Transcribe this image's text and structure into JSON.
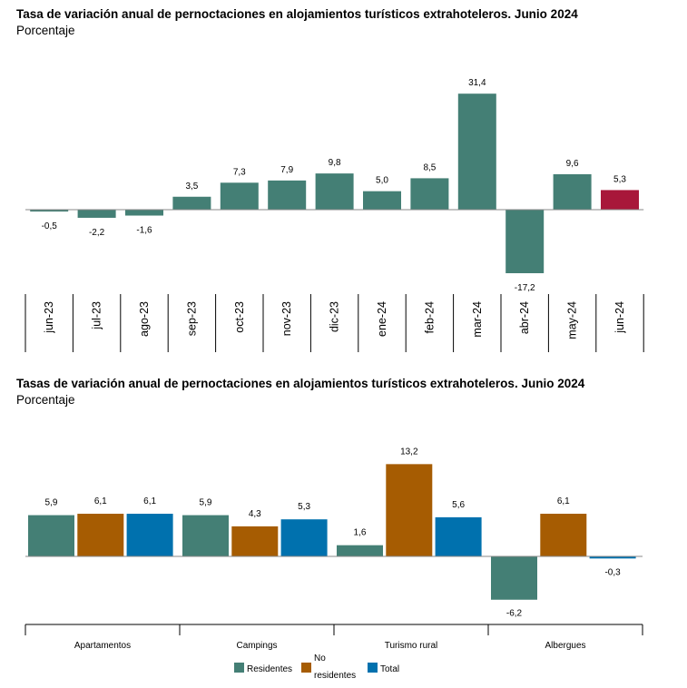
{
  "chart_data": [
    {
      "type": "bar",
      "title": "Tasa de variación anual de pernoctaciones en alojamientos turísticos extrahoteleros. Junio 2024",
      "subtitle": "Porcentaje",
      "categories": [
        "jun-23",
        "jul-23",
        "ago-23",
        "sep-23",
        "oct-23",
        "nov-23",
        "dic-23",
        "ene-24",
        "feb-24",
        "mar-24",
        "abr-24",
        "may-24",
        "jun-24"
      ],
      "values": [
        -0.5,
        -2.2,
        -1.6,
        3.5,
        7.3,
        7.9,
        9.8,
        5.0,
        8.5,
        31.4,
        -17.2,
        9.6,
        5.3
      ],
      "value_labels": [
        "-0,5",
        "-2,2",
        "-1,6",
        "3,5",
        "7,3",
        "7,9",
        "9,8",
        "5,0",
        "8,5",
        "31,4",
        "-17,2",
        "9,6",
        "5,3"
      ],
      "colors": {
        "default": "#447F75",
        "highlight": "#A8173A"
      },
      "highlight_index": 12,
      "grid": false
    },
    {
      "type": "bar",
      "title": "Tasas de variación anual de pernoctaciones en alojamientos turísticos extrahoteleros. Junio 2024",
      "subtitle": "Porcentaje",
      "categories": [
        "Apartamentos",
        "Campings",
        "Turismo rural",
        "Albergues"
      ],
      "series": [
        {
          "name": "Residentes",
          "color": "#447F75",
          "values": [
            5.9,
            5.9,
            1.6,
            -6.2
          ],
          "value_labels": [
            "5,9",
            "5,9",
            "1,6",
            "-6,2"
          ]
        },
        {
          "name": "No residentes",
          "color": "#A65C02",
          "values": [
            6.1,
            4.3,
            13.2,
            6.1
          ],
          "value_labels": [
            "6,1",
            "4,3",
            "13,2",
            "6,1"
          ]
        },
        {
          "name": "Total",
          "color": "#0071AE",
          "values": [
            6.1,
            5.3,
            5.6,
            -0.3
          ],
          "value_labels": [
            "6,1",
            "5,3",
            "5,6",
            "-0,3"
          ]
        }
      ],
      "legend": {
        "placement": "bottom-center",
        "lines": [
          [
            "Residentes"
          ],
          [
            "No",
            "residentes"
          ],
          [
            "Total"
          ]
        ]
      },
      "grid": false
    }
  ]
}
